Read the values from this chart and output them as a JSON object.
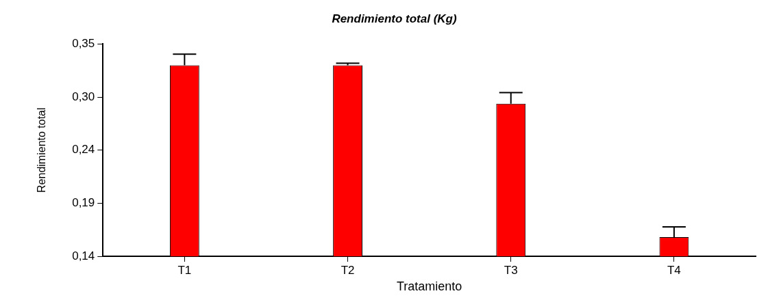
{
  "chart_data": {
    "type": "bar",
    "title": "Rendimiento total (Kg)",
    "xlabel": "Tratamiento",
    "ylabel": "Rendimiento total",
    "categories": [
      "T1",
      "T2",
      "T3",
      "T4"
    ],
    "values": [
      0.329,
      0.329,
      0.291,
      0.159
    ],
    "errors": [
      [
        0.329,
        0.34
      ],
      [
        0.329,
        0.331
      ],
      [
        0.291,
        0.302
      ],
      [
        0.159,
        0.169
      ]
    ],
    "color": "#ff0000",
    "ylim": [
      0.14,
      0.35
    ],
    "yticks": [
      {
        "value": 0.14,
        "label": "0,14"
      },
      {
        "value": 0.1925,
        "label": "0,19"
      },
      {
        "value": 0.245,
        "label": "0,24"
      },
      {
        "value": 0.2975,
        "label": "0,30"
      },
      {
        "value": 0.35,
        "label": "0,35"
      }
    ],
    "grid": false,
    "legend": false
  }
}
